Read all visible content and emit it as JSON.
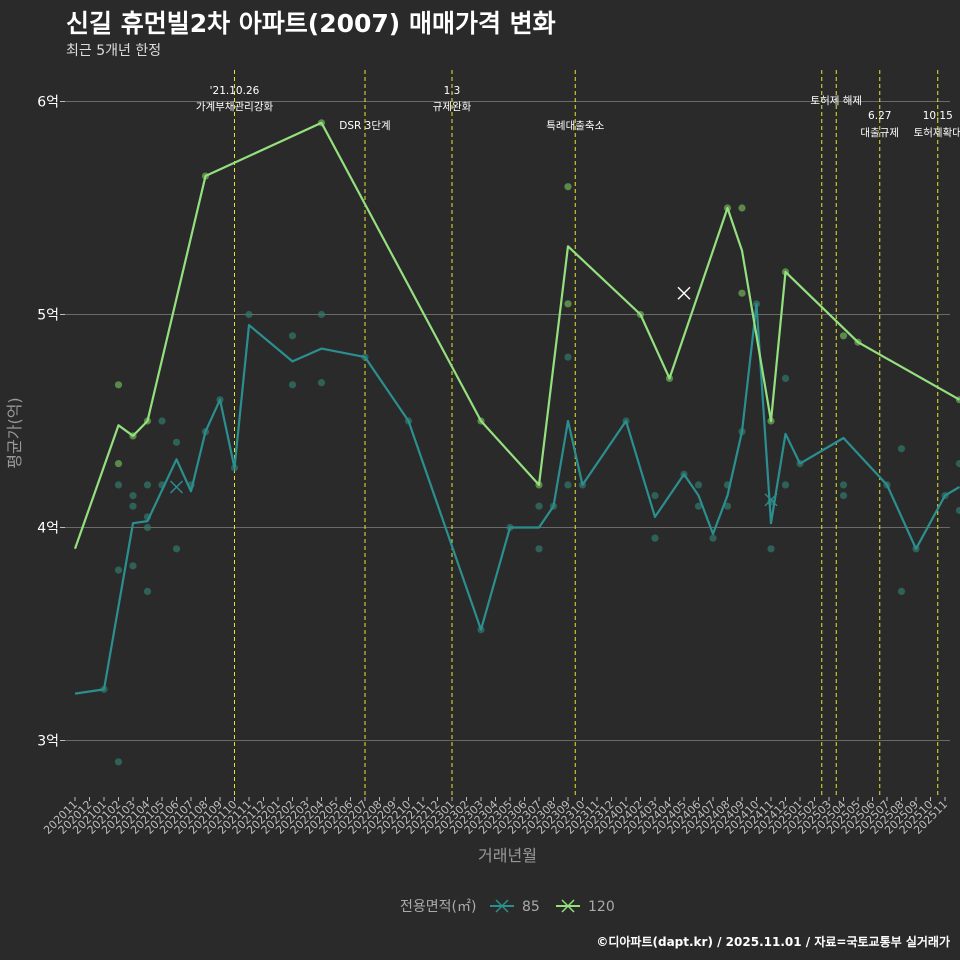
{
  "header": {
    "title": "신길 휴먼빌2차 아파트(2007) 매매가격 변화",
    "subtitle": "최근 5개년 한정",
    "caption": "©디아파트(dapt.kr) / 2025.11.01 / 자료=국토교통부 실거래가"
  },
  "colors": {
    "background": "#2b2a2b",
    "grid": "#6a6a6a",
    "vline": "#e6e62c",
    "series85": "#2b8f8f",
    "series120": "#94e07f",
    "dot85": "#2f7f6e",
    "dot120": "#6fb35a"
  },
  "chart_data": {
    "type": "line",
    "title": "신길 휴먼빌2차 아파트(2007) 매매가격 변화",
    "xlabel": "거래년월",
    "ylabel": "평균가(억)",
    "ylim": [
      2.75,
      6.15
    ],
    "x_ticks": [
      "202011",
      "202012",
      "202101",
      "202102",
      "202103",
      "202104",
      "202105",
      "202106",
      "202107",
      "202108",
      "202109",
      "202110",
      "202111",
      "202112",
      "202201",
      "202202",
      "202203",
      "202204",
      "202205",
      "202206",
      "202207",
      "202208",
      "202209",
      "202210",
      "202211",
      "202212",
      "202301",
      "202302",
      "202303",
      "202304",
      "202305",
      "202306",
      "202307",
      "202308",
      "202309",
      "202310",
      "202311",
      "202312",
      "202401",
      "202402",
      "202403",
      "202404",
      "202405",
      "202406",
      "202407",
      "202408",
      "202409",
      "202410",
      "202411",
      "202412",
      "202501",
      "202502",
      "202503",
      "202504",
      "202505",
      "202506",
      "202507",
      "202508",
      "202509",
      "202510",
      "202511"
    ],
    "y_ticks": [
      {
        "value": 3,
        "label": "3억"
      },
      {
        "value": 4,
        "label": "4억"
      },
      {
        "value": 5,
        "label": "5억"
      },
      {
        "value": 6,
        "label": "6억"
      }
    ],
    "legend": {
      "title": "전용면적(㎡)",
      "position": "bottom"
    },
    "series": [
      {
        "name": "85",
        "line": [
          [
            0,
            3.22
          ],
          [
            2,
            3.24
          ],
          [
            4,
            4.02
          ],
          [
            5,
            4.03
          ],
          [
            7,
            4.32
          ],
          [
            8,
            4.17
          ],
          [
            9,
            4.45
          ],
          [
            10,
            4.6
          ],
          [
            11,
            4.28
          ],
          [
            12,
            4.95
          ],
          [
            15,
            4.78
          ],
          [
            17,
            4.84
          ],
          [
            20,
            4.8
          ],
          [
            23,
            4.5
          ],
          [
            28,
            3.52
          ],
          [
            30,
            4.0
          ],
          [
            32,
            4.0
          ],
          [
            33,
            4.1
          ],
          [
            34,
            4.5
          ],
          [
            35,
            4.2
          ],
          [
            38,
            4.5
          ],
          [
            40,
            4.05
          ],
          [
            42,
            4.25
          ],
          [
            43,
            4.15
          ],
          [
            44,
            3.97
          ],
          [
            45,
            4.15
          ],
          [
            46,
            4.45
          ],
          [
            47,
            5.05
          ],
          [
            48,
            4.02
          ],
          [
            49,
            4.44
          ],
          [
            50,
            4.3
          ],
          [
            53,
            4.42
          ],
          [
            56,
            4.2
          ],
          [
            58,
            3.9
          ],
          [
            60,
            4.15
          ],
          [
            61,
            4.19
          ]
        ],
        "points": [
          [
            2,
            3.24
          ],
          [
            3,
            2.9
          ],
          [
            3,
            3.8
          ],
          [
            3,
            4.2
          ],
          [
            4,
            3.82
          ],
          [
            4,
            4.1
          ],
          [
            4,
            4.15
          ],
          [
            5,
            3.7
          ],
          [
            5,
            4.0
          ],
          [
            5,
            4.05
          ],
          [
            5,
            4.2
          ],
          [
            6,
            4.2
          ],
          [
            6,
            4.5
          ],
          [
            7,
            3.9
          ],
          [
            7,
            4.4
          ],
          [
            8,
            4.2
          ],
          [
            9,
            4.45
          ],
          [
            10,
            4.6
          ],
          [
            11,
            4.28
          ],
          [
            12,
            5.0
          ],
          [
            15,
            4.9
          ],
          [
            15,
            4.67
          ],
          [
            17,
            5.0
          ],
          [
            17,
            4.68
          ],
          [
            20,
            4.8
          ],
          [
            23,
            4.5
          ],
          [
            28,
            3.52
          ],
          [
            30,
            4.0
          ],
          [
            32,
            3.9
          ],
          [
            32,
            4.1
          ],
          [
            33,
            4.1
          ],
          [
            34,
            4.8
          ],
          [
            34,
            4.2
          ],
          [
            35,
            4.2
          ],
          [
            38,
            4.5
          ],
          [
            40,
            4.15
          ],
          [
            40,
            3.95
          ],
          [
            42,
            4.25
          ],
          [
            43,
            4.1
          ],
          [
            43,
            4.2
          ],
          [
            44,
            3.95
          ],
          [
            45,
            4.1
          ],
          [
            45,
            4.2
          ],
          [
            46,
            4.45
          ],
          [
            47,
            5.05
          ],
          [
            48,
            3.9
          ],
          [
            48,
            4.12
          ],
          [
            49,
            4.7
          ],
          [
            49,
            4.2
          ],
          [
            50,
            4.3
          ],
          [
            53,
            4.2
          ],
          [
            53,
            4.15
          ],
          [
            56,
            4.2
          ],
          [
            57,
            3.7
          ],
          [
            57,
            4.37
          ],
          [
            58,
            3.9
          ],
          [
            60,
            4.15
          ],
          [
            61,
            4.3
          ],
          [
            61,
            4.08
          ]
        ],
        "crosses": [
          [
            7,
            4.19
          ],
          [
            48,
            4.13
          ]
        ]
      },
      {
        "name": "120",
        "line": [
          [
            0,
            3.9
          ],
          [
            3,
            4.48
          ],
          [
            4,
            4.43
          ],
          [
            5,
            4.5
          ],
          [
            9,
            5.65
          ],
          [
            17,
            5.9
          ],
          [
            28,
            4.5
          ],
          [
            32,
            4.2
          ],
          [
            34,
            5.32
          ],
          [
            39,
            5.0
          ],
          [
            41,
            4.7
          ],
          [
            45,
            5.5
          ],
          [
            46,
            5.3
          ],
          [
            48,
            4.5
          ],
          [
            49,
            5.2
          ],
          [
            54,
            4.87
          ],
          [
            61,
            4.6
          ]
        ],
        "points": [
          [
            3,
            4.67
          ],
          [
            3,
            4.3
          ],
          [
            4,
            4.43
          ],
          [
            5,
            4.5
          ],
          [
            9,
            5.65
          ],
          [
            17,
            5.9
          ],
          [
            28,
            4.5
          ],
          [
            32,
            4.2
          ],
          [
            34,
            5.6
          ],
          [
            34,
            5.05
          ],
          [
            39,
            5.0
          ],
          [
            41,
            4.7
          ],
          [
            45,
            5.5
          ],
          [
            46,
            5.5
          ],
          [
            46,
            5.1
          ],
          [
            48,
            4.5
          ],
          [
            49,
            5.2
          ],
          [
            53,
            4.9
          ],
          [
            54,
            4.87
          ],
          [
            61,
            4.6
          ]
        ],
        "crosses": [
          [
            42,
            5.1
          ]
        ]
      }
    ],
    "events": [
      {
        "x": 11,
        "lines": [
          "'21.10.26",
          "가계부채관리강화"
        ],
        "level": 0
      },
      {
        "x": 20,
        "lines": [
          "DSR 3단계"
        ],
        "level": 1
      },
      {
        "x": 26,
        "lines": [
          "1.3",
          "규제완화"
        ],
        "level": 0
      },
      {
        "x": 34.5,
        "lines": [
          "특례대출축소"
        ],
        "level": 1
      },
      {
        "x": 51.5,
        "lines": [],
        "level": 0
      },
      {
        "x": 52.5,
        "lines": [
          "토허제 해제"
        ],
        "level": 0
      },
      {
        "x": 55.5,
        "lines": [
          "6.27",
          "대출규제"
        ],
        "level": 1
      },
      {
        "x": 59.5,
        "lines": [
          "10.15",
          "토허제확대"
        ],
        "level": 1
      }
    ]
  }
}
